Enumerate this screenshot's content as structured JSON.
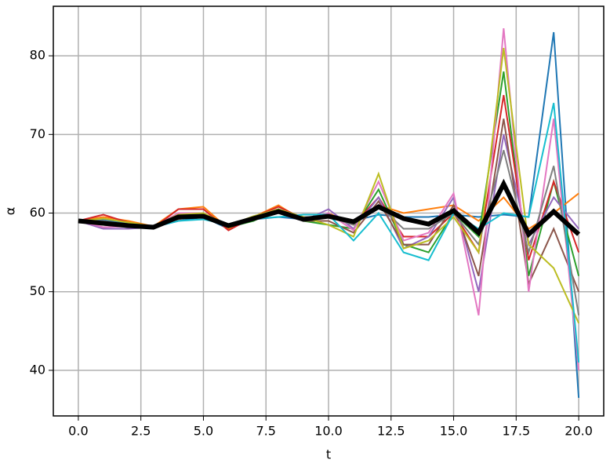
{
  "chart_data": {
    "type": "line",
    "xlabel": "t",
    "ylabel": "α",
    "x": [
      0,
      1,
      2,
      3,
      4,
      5,
      6,
      7,
      8,
      9,
      10,
      11,
      12,
      13,
      14,
      15,
      16,
      17,
      18,
      19,
      20
    ],
    "xlim": [
      -1.0,
      21.0
    ],
    "xticks": [
      {
        "value": 0,
        "label": "0.0"
      },
      {
        "value": 2.5,
        "label": "2.5"
      },
      {
        "value": 5,
        "label": "5.0"
      },
      {
        "value": 7.5,
        "label": "7.5"
      },
      {
        "value": 10,
        "label": "10.0"
      },
      {
        "value": 12.5,
        "label": "12.5"
      },
      {
        "value": 15,
        "label": "15.0"
      },
      {
        "value": 17.5,
        "label": "17.5"
      },
      {
        "value": 20,
        "label": "20.0"
      }
    ],
    "ylim": [
      34.2,
      86.3
    ],
    "yticks": [
      40,
      50,
      60,
      70,
      80
    ],
    "grid": true,
    "series": [
      {
        "color": "#1f77b4",
        "values": [
          59,
          59.2,
          58.6,
          58.2,
          59,
          59.5,
          58,
          59.2,
          59.5,
          59.2,
          59.8,
          59,
          59.8,
          59.5,
          59.5,
          59.8,
          59.5,
          59.8,
          59.5,
          83,
          36.5
        ]
      },
      {
        "color": "#ff7f0e",
        "values": [
          59,
          59.5,
          59,
          58.3,
          60.5,
          60.8,
          58,
          59.5,
          61,
          59,
          60,
          58.5,
          61,
          60,
          60.5,
          61,
          59,
          62,
          58,
          60,
          62.5
        ]
      },
      {
        "color": "#2ca02c",
        "values": [
          59,
          58.5,
          58.2,
          58.2,
          59.5,
          59.5,
          58.2,
          59,
          60.5,
          59,
          58.5,
          58,
          63,
          56,
          55,
          60,
          57,
          78,
          52,
          64,
          52
        ]
      },
      {
        "color": "#d62728",
        "values": [
          59,
          59.8,
          58.8,
          58.1,
          60.5,
          60.5,
          57.8,
          59.5,
          60.8,
          59.3,
          59.5,
          58.5,
          62,
          57,
          57,
          60,
          55,
          75,
          54,
          64,
          55
        ]
      },
      {
        "color": "#9467bd",
        "values": [
          59,
          58,
          58,
          58.2,
          59.5,
          59.5,
          58.3,
          59.2,
          60,
          59,
          60.5,
          58,
          62,
          55.5,
          57,
          62,
          50,
          70,
          56,
          62,
          58
        ]
      },
      {
        "color": "#8c564b",
        "values": [
          59,
          58.5,
          58.4,
          58.2,
          59.2,
          59.8,
          58.5,
          59.5,
          60.5,
          59,
          59,
          57.5,
          61.5,
          56,
          56,
          61,
          52,
          72,
          51,
          58,
          50
        ]
      },
      {
        "color": "#e377c2",
        "values": [
          59,
          58.2,
          58.3,
          58.2,
          60,
          60,
          58.2,
          59.4,
          60.2,
          59.2,
          60,
          57.8,
          64,
          56.5,
          57.5,
          62.5,
          47,
          83.5,
          50,
          72,
          40
        ]
      },
      {
        "color": "#7f7f7f",
        "values": [
          59,
          59,
          58.5,
          58.2,
          59.5,
          59.8,
          58.4,
          59.3,
          60,
          59.5,
          59.5,
          58.5,
          61,
          58,
          58,
          60,
          56,
          68,
          55,
          66,
          47
        ]
      },
      {
        "color": "#bcbd22",
        "values": [
          59,
          59.3,
          58.8,
          58.3,
          59.8,
          60,
          58.4,
          59.6,
          60.5,
          59.5,
          58.5,
          57,
          65,
          55.5,
          56.5,
          59.5,
          55,
          81,
          56,
          53,
          46
        ]
      },
      {
        "color": "#17becf",
        "values": [
          59,
          58.8,
          58.3,
          58.2,
          59,
          59.2,
          58.5,
          59.3,
          59.5,
          59.8,
          59.8,
          56.5,
          60,
          55,
          54,
          60,
          58,
          60,
          59.5,
          74,
          41
        ]
      },
      {
        "color": "#000000",
        "values": [
          59,
          58.7,
          58.4,
          58.2,
          59.5,
          59.6,
          58.4,
          59.3,
          60.2,
          59.2,
          59.6,
          58.9,
          60.8,
          59.3,
          58.6,
          60.3,
          57.5,
          63.7,
          57.3,
          60.2,
          57.3
        ]
      }
    ]
  }
}
